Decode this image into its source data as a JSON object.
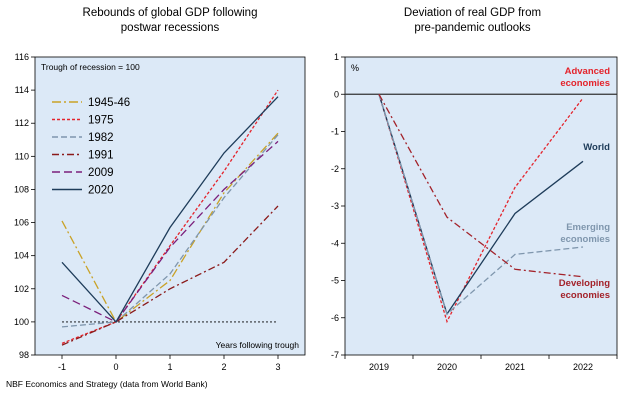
{
  "source_note": "NBF Economics and Strategy (data from World Bank)",
  "chart_data": [
    {
      "type": "line",
      "title": "Rebounds of global GDP following postwar recessions",
      "title_lines": [
        "Rebounds of global GDP following",
        "postwar recessions"
      ],
      "annotation": "Trough of recession = 100",
      "xlabel": "Years following trough",
      "ylabel": "",
      "x": [
        -1,
        0,
        1,
        2,
        3
      ],
      "xlim": [
        -1.5,
        3.5
      ],
      "ylim": [
        98,
        116
      ],
      "yticks": [
        98,
        100,
        102,
        104,
        106,
        108,
        110,
        112,
        114,
        116
      ],
      "reference_line": 100,
      "legend": "top-left",
      "grid": false,
      "series": [
        {
          "name": "1945-46",
          "values": [
            106.1,
            100,
            102.5,
            107.8,
            111.4
          ],
          "color": "#c9a227",
          "dash": "9,3,2,3"
        },
        {
          "name": "1975",
          "values": [
            98.7,
            100,
            104.6,
            109.1,
            114.0
          ],
          "color": "#e4232b",
          "dash": "3,2"
        },
        {
          "name": "1982",
          "values": [
            99.7,
            100,
            102.9,
            107.5,
            111.3
          ],
          "color": "#7f96ad",
          "dash": "6,3"
        },
        {
          "name": "1991",
          "values": [
            98.6,
            100,
            102.0,
            103.6,
            107.0
          ],
          "color": "#8b1a1a",
          "dash": "7,3,2,3"
        },
        {
          "name": "2009",
          "values": [
            101.6,
            100,
            104.5,
            108.0,
            110.9
          ],
          "color": "#7b1f7b",
          "dash": "8,4"
        },
        {
          "name": "2020",
          "values": [
            103.6,
            100,
            105.7,
            110.2,
            113.6
          ],
          "color": "#1e3c5a",
          "dash": ""
        }
      ]
    },
    {
      "type": "line",
      "title": "Deviation of real GDP from pre-pandemic outlooks",
      "title_lines": [
        "Deviation of real GDP from",
        "pre-pandemic outlooks"
      ],
      "ylabel": "%",
      "xlabel": "",
      "categories": [
        "2019",
        "2020",
        "2021",
        "2022"
      ],
      "ylim": [
        -7,
        1
      ],
      "yticks": [
        -7,
        -6,
        -5,
        -4,
        -3,
        -2,
        -1,
        0,
        1
      ],
      "reference_line": 0,
      "grid": false,
      "series": [
        {
          "name": "Advanced economies",
          "label_lines": [
            "Advanced",
            "economies"
          ],
          "values": [
            0,
            -6.1,
            -2.5,
            -0.1
          ],
          "color": "#e4232b",
          "dash": "3,2"
        },
        {
          "name": "World",
          "label_lines": [
            "World"
          ],
          "values": [
            0,
            -5.9,
            -3.2,
            -1.8
          ],
          "color": "#1e3c5a",
          "dash": ""
        },
        {
          "name": "Emerging economies",
          "label_lines": [
            "Emerging",
            "economies"
          ],
          "values": [
            0,
            -5.9,
            -4.3,
            -4.1
          ],
          "color": "#7f96ad",
          "dash": "6,3"
        },
        {
          "name": "Developing economies",
          "label_lines": [
            "Developing",
            "economies"
          ],
          "values": [
            0,
            -3.3,
            -4.7,
            -4.9
          ],
          "color": "#a3222a",
          "dash": "7,3,2,3"
        }
      ]
    }
  ]
}
